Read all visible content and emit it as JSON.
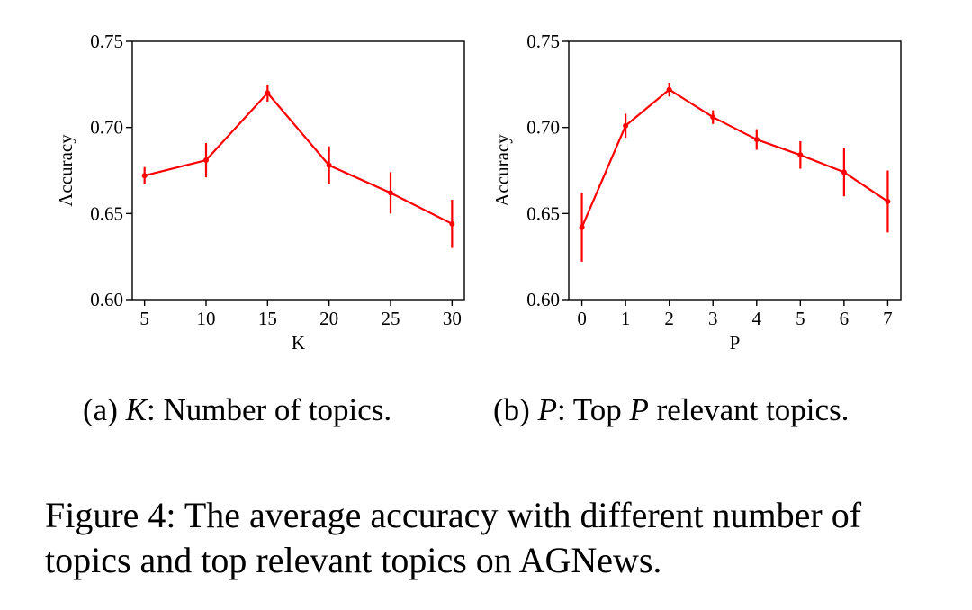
{
  "chart_data": [
    {
      "type": "line",
      "x": [
        5,
        10,
        15,
        20,
        25,
        30
      ],
      "xticks": [
        "5",
        "10",
        "15",
        "20",
        "25",
        "30"
      ],
      "series": [
        {
          "values": [
            0.672,
            0.681,
            0.72,
            0.678,
            0.662,
            0.644
          ],
          "error": [
            0.005,
            0.01,
            0.005,
            0.011,
            0.012,
            0.014
          ]
        }
      ],
      "xlabel": "K",
      "ylabel": "Accuracy",
      "xlim": [
        4,
        31
      ],
      "ylim": [
        0.6,
        0.75
      ],
      "yticks": [
        "0.60",
        "0.65",
        "0.70",
        "0.75"
      ],
      "color": "#ff0000",
      "grid": false
    },
    {
      "type": "line",
      "x": [
        0,
        1,
        2,
        3,
        4,
        5,
        6,
        7
      ],
      "xticks": [
        "0",
        "1",
        "2",
        "3",
        "4",
        "5",
        "6",
        "7"
      ],
      "series": [
        {
          "values": [
            0.642,
            0.701,
            0.722,
            0.706,
            0.693,
            0.684,
            0.674,
            0.657
          ],
          "error": [
            0.02,
            0.007,
            0.004,
            0.004,
            0.006,
            0.008,
            0.014,
            0.018
          ]
        }
      ],
      "xlabel": "P",
      "ylabel": "Accuracy",
      "xlim": [
        -0.3,
        7.3
      ],
      "ylim": [
        0.6,
        0.75
      ],
      "yticks": [
        "0.60",
        "0.65",
        "0.70",
        "0.75"
      ],
      "color": "#ff0000",
      "grid": false
    }
  ],
  "subcaptions": {
    "a": {
      "prefix": "(a)",
      "var": "K",
      "text": ": Number of topics."
    },
    "b": {
      "prefix": "(b)",
      "var": "P",
      "text_1": ": Top ",
      "var_2": "P",
      "text_2": " relevant topics."
    }
  },
  "caption": "Figure 4: The average accuracy with different number of topics and top relevant topics on AGNews."
}
